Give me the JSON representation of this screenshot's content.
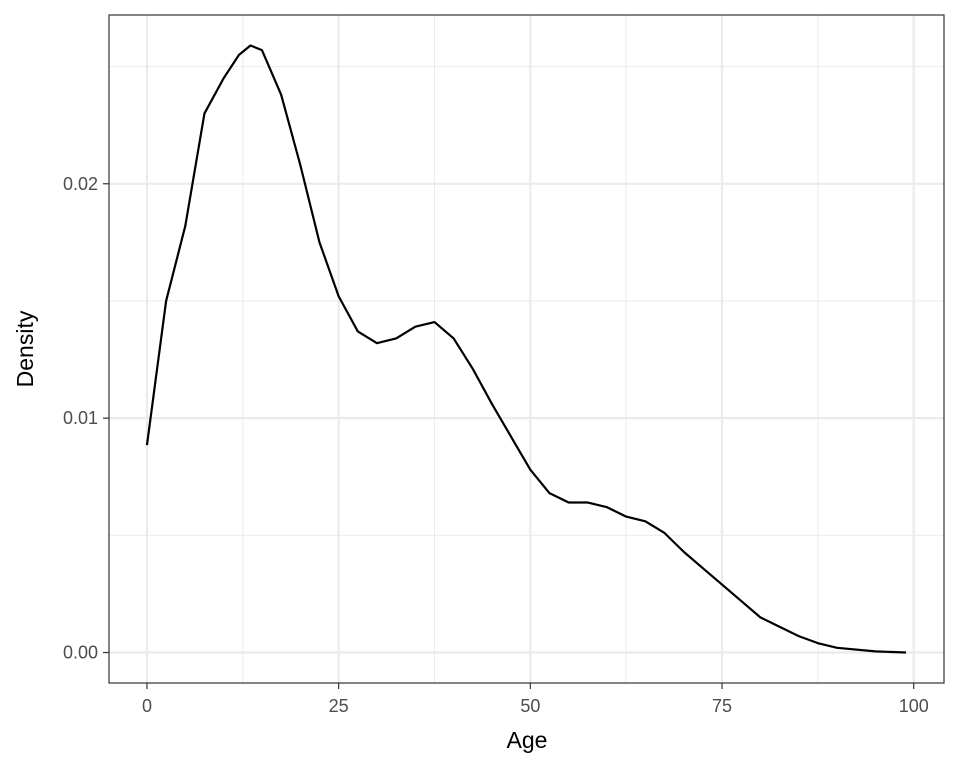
{
  "chart_data": {
    "type": "line",
    "x_label": "Age",
    "y_label": "Density",
    "x": [
      0,
      2.5,
      5,
      7.5,
      10,
      12,
      13.5,
      15,
      17.5,
      20,
      22.5,
      25,
      27.5,
      30,
      32.5,
      35,
      37.5,
      40,
      42.5,
      45,
      47.5,
      50,
      52.5,
      55,
      57.5,
      60,
      62.5,
      65,
      67.5,
      70,
      72.5,
      75,
      77.5,
      80,
      82.5,
      85,
      87.5,
      90,
      95,
      99
    ],
    "series": [
      {
        "color": "#000000",
        "values": [
          0.00885,
          0.015,
          0.0182,
          0.023,
          0.0245,
          0.0255,
          0.0259,
          0.0257,
          0.0238,
          0.0208,
          0.0175,
          0.0152,
          0.0137,
          0.0132,
          0.0134,
          0.0139,
          0.0141,
          0.0134,
          0.0121,
          0.0106,
          0.0092,
          0.0078,
          0.0068,
          0.0064,
          0.0064,
          0.0062,
          0.0058,
          0.0056,
          0.0051,
          0.0043,
          0.0036,
          0.0029,
          0.0022,
          0.0015,
          0.0011,
          0.0007,
          0.0004,
          0.0002,
          5e-05,
          0
        ]
      }
    ],
    "xlim": [
      -4.95,
      103.95
    ],
    "ylim": [
      -0.0013,
      0.0272
    ],
    "xticks": [
      0,
      25,
      50,
      75,
      100
    ],
    "yticks": [
      {
        "value": 0,
        "label": "0.00"
      },
      {
        "value": 0.01,
        "label": "0.01"
      },
      {
        "value": 0.02,
        "label": "0.02"
      }
    ],
    "x_minor_grid": [
      12.5,
      37.5,
      62.5,
      87.5
    ],
    "y_minor_grid": [
      0.005,
      0.015,
      0.025
    ],
    "grid": true
  }
}
